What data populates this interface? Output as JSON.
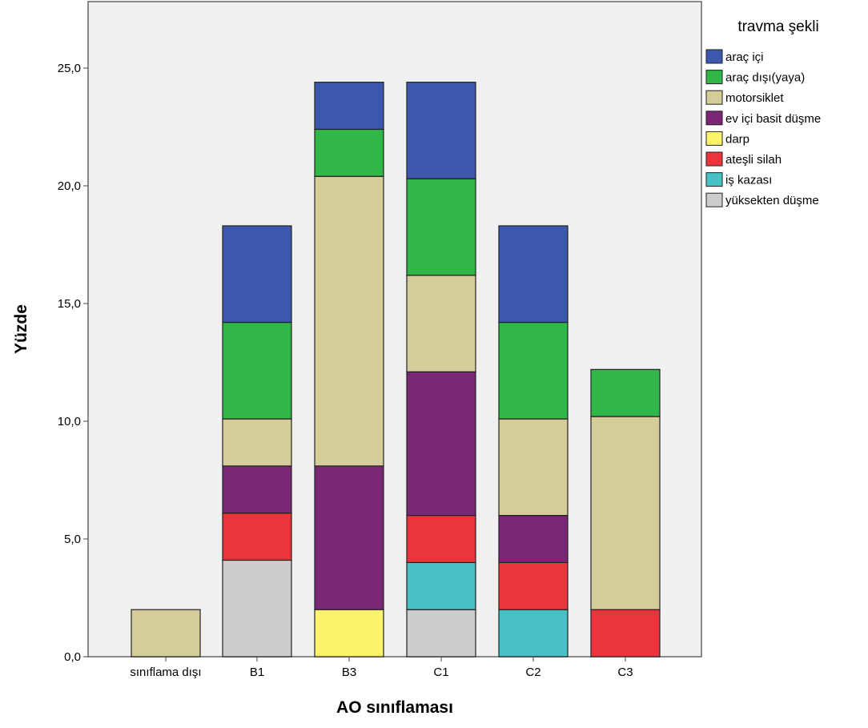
{
  "chart_data": {
    "type": "bar",
    "stacked": true,
    "xlabel": "AO sınıflaması",
    "ylabel": "Yüzde",
    "ylim": [
      0,
      27.5
    ],
    "yticks": [
      0,
      5,
      10,
      15,
      20,
      25
    ],
    "ytick_labels": [
      "0,0",
      "5,0",
      "10,0",
      "15,0",
      "20,0",
      "25,0"
    ],
    "grid": false,
    "legend_title": "travma şekli",
    "legend_position": "right",
    "categories": [
      "sınıflama dışı",
      "B1",
      "B3",
      "C1",
      "C2",
      "C3"
    ],
    "series": [
      {
        "name": "yüksekten düşme",
        "color": "#cccccc",
        "values": [
          0,
          4.1,
          0,
          2.0,
          0,
          0
        ]
      },
      {
        "name": "iş kazası",
        "color": "#47c1c4",
        "values": [
          0,
          0,
          0,
          2.0,
          2.0,
          0
        ]
      },
      {
        "name": "ateşli silah",
        "color": "#ec343c",
        "values": [
          0,
          2.0,
          0,
          2.0,
          2.0,
          2.0
        ]
      },
      {
        "name": "darp",
        "color": "#fbf46b",
        "values": [
          0,
          0,
          2.0,
          0,
          0,
          0
        ]
      },
      {
        "name": "ev içi basit düşme",
        "color": "#7a2776",
        "values": [
          0,
          2.0,
          6.1,
          6.1,
          2.0,
          0
        ]
      },
      {
        "name": "motorsiklet",
        "color": "#d4cc99",
        "values": [
          2.0,
          2.0,
          12.3,
          4.1,
          4.1,
          8.2
        ]
      },
      {
        "name": "araç dışı(yaya)",
        "color": "#30b748",
        "values": [
          0,
          4.1,
          2.0,
          4.1,
          4.1,
          2.0
        ]
      },
      {
        "name": "araç içi",
        "color": "#3c58ad",
        "values": [
          0,
          4.1,
          2.0,
          4.1,
          4.1,
          0
        ]
      }
    ],
    "legend_order": [
      "araç içi",
      "araç dışı(yaya)",
      "motorsiklet",
      "ev içi basit düşme",
      "darp",
      "ateşli silah",
      "iş kazası",
      "yüksekten düşme"
    ]
  }
}
